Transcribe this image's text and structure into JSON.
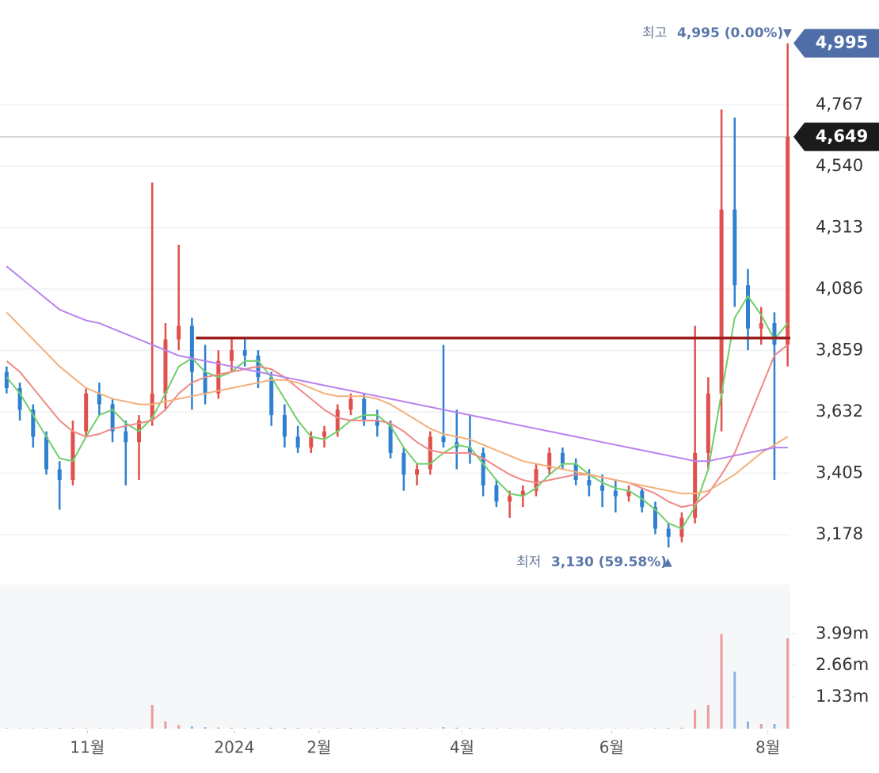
{
  "chart_data": {
    "type": "candlestick",
    "up_color": "#e0504c",
    "down_color": "#2f80d1",
    "xlim": [
      -0.5,
      59.2
    ],
    "xticks": [
      {
        "value": 6.1,
        "label": "11월"
      },
      {
        "value": 17.2,
        "label": "2024"
      },
      {
        "value": 23.6,
        "label": "2월"
      },
      {
        "value": 34.4,
        "label": "4월"
      },
      {
        "value": 45.7,
        "label": "6월"
      },
      {
        "value": 57.5,
        "label": "8월"
      }
    ],
    "ylim": [
      3017,
      5155
    ],
    "yticks": [
      {
        "value": 3178,
        "label": "3,178"
      },
      {
        "value": 3405,
        "label": "3,405"
      },
      {
        "value": 3632,
        "label": "3,632"
      },
      {
        "value": 3859,
        "label": "3,859"
      },
      {
        "value": 4086,
        "label": "4,086"
      },
      {
        "value": 4313,
        "label": "4,313"
      },
      {
        "value": 4540,
        "label": "4,540"
      },
      {
        "value": 4767,
        "label": "4,767"
      }
    ],
    "grid": true,
    "ohlc": [
      [
        3780,
        3800,
        3700,
        3720
      ],
      [
        3720,
        3740,
        3600,
        3640
      ],
      [
        3640,
        3660,
        3500,
        3540
      ],
      [
        3540,
        3560,
        3400,
        3420
      ],
      [
        3420,
        3450,
        3270,
        3380
      ],
      [
        3380,
        3600,
        3360,
        3560
      ],
      [
        3560,
        3720,
        3540,
        3700
      ],
      [
        3700,
        3740,
        3620,
        3660
      ],
      [
        3660,
        3680,
        3520,
        3560
      ],
      [
        3560,
        3600,
        3360,
        3520
      ],
      [
        3520,
        3620,
        3380,
        3600
      ],
      [
        3600,
        4480,
        3580,
        3700
      ],
      [
        3700,
        3960,
        3640,
        3900
      ],
      [
        3900,
        4250,
        3860,
        3950
      ],
      [
        3950,
        3980,
        3640,
        3780
      ],
      [
        3780,
        3880,
        3660,
        3700
      ],
      [
        3700,
        3860,
        3680,
        3820
      ],
      [
        3820,
        3900,
        3780,
        3860
      ],
      [
        3860,
        3900,
        3800,
        3840
      ],
      [
        3840,
        3860,
        3720,
        3760
      ],
      [
        3760,
        3780,
        3580,
        3620
      ],
      [
        3620,
        3660,
        3500,
        3540
      ],
      [
        3540,
        3580,
        3480,
        3500
      ],
      [
        3500,
        3560,
        3480,
        3540
      ],
      [
        3540,
        3580,
        3500,
        3560
      ],
      [
        3560,
        3660,
        3540,
        3640
      ],
      [
        3640,
        3700,
        3620,
        3680
      ],
      [
        3680,
        3700,
        3580,
        3600
      ],
      [
        3600,
        3640,
        3540,
        3580
      ],
      [
        3580,
        3600,
        3460,
        3480
      ],
      [
        3480,
        3500,
        3340,
        3400
      ],
      [
        3400,
        3440,
        3360,
        3420
      ],
      [
        3420,
        3560,
        3400,
        3540
      ],
      [
        3540,
        3880,
        3500,
        3520
      ],
      [
        3520,
        3640,
        3420,
        3500
      ],
      [
        3500,
        3620,
        3440,
        3480
      ],
      [
        3480,
        3500,
        3320,
        3360
      ],
      [
        3360,
        3380,
        3280,
        3300
      ],
      [
        3300,
        3340,
        3240,
        3320
      ],
      [
        3320,
        3360,
        3280,
        3340
      ],
      [
        3340,
        3440,
        3320,
        3420
      ],
      [
        3420,
        3500,
        3400,
        3480
      ],
      [
        3480,
        3500,
        3420,
        3440
      ],
      [
        3440,
        3460,
        3360,
        3380
      ],
      [
        3380,
        3420,
        3320,
        3360
      ],
      [
        3360,
        3400,
        3280,
        3340
      ],
      [
        3340,
        3380,
        3260,
        3320
      ],
      [
        3320,
        3360,
        3300,
        3340
      ],
      [
        3340,
        3350,
        3260,
        3280
      ],
      [
        3280,
        3300,
        3180,
        3200
      ],
      [
        3200,
        3220,
        3130,
        3170
      ],
      [
        3170,
        3260,
        3150,
        3240
      ],
      [
        3240,
        3950,
        3220,
        3480
      ],
      [
        3480,
        3760,
        3420,
        3700
      ],
      [
        3700,
        4750,
        3560,
        4380
      ],
      [
        4380,
        4720,
        4020,
        4100
      ],
      [
        4100,
        4160,
        3860,
        3940
      ],
      [
        3940,
        4020,
        3880,
        3960
      ],
      [
        3960,
        4000,
        3380,
        3880
      ],
      [
        3880,
        4995,
        3800,
        4649
      ]
    ],
    "moving_averages": [
      {
        "color": "#6fcf6a",
        "values": [
          3760,
          3700,
          3620,
          3540,
          3460,
          3450,
          3540,
          3620,
          3640,
          3590,
          3560,
          3610,
          3700,
          3800,
          3830,
          3780,
          3760,
          3780,
          3820,
          3820,
          3760,
          3680,
          3600,
          3540,
          3530,
          3560,
          3600,
          3620,
          3620,
          3580,
          3500,
          3440,
          3440,
          3480,
          3510,
          3500,
          3440,
          3380,
          3330,
          3320,
          3350,
          3400,
          3440,
          3440,
          3400,
          3370,
          3350,
          3340,
          3310,
          3270,
          3220,
          3200,
          3280,
          3420,
          3700,
          3980,
          4060,
          3990,
          3900,
          3960
        ]
      },
      {
        "color": "#ee8a86",
        "values": [
          3820,
          3780,
          3720,
          3660,
          3600,
          3560,
          3540,
          3550,
          3570,
          3580,
          3590,
          3600,
          3640,
          3700,
          3740,
          3760,
          3770,
          3780,
          3790,
          3800,
          3790,
          3760,
          3720,
          3680,
          3640,
          3610,
          3600,
          3600,
          3600,
          3590,
          3560,
          3520,
          3490,
          3480,
          3480,
          3480,
          3460,
          3430,
          3400,
          3380,
          3370,
          3380,
          3390,
          3400,
          3400,
          3390,
          3380,
          3370,
          3350,
          3330,
          3300,
          3280,
          3290,
          3330,
          3400,
          3480,
          3600,
          3720,
          3840,
          3880
        ]
      },
      {
        "color": "#f3b07c",
        "values": [
          4000,
          3950,
          3900,
          3850,
          3800,
          3760,
          3720,
          3700,
          3680,
          3670,
          3660,
          3660,
          3670,
          3680,
          3690,
          3700,
          3710,
          3720,
          3730,
          3740,
          3750,
          3750,
          3740,
          3720,
          3700,
          3690,
          3690,
          3690,
          3680,
          3660,
          3630,
          3600,
          3570,
          3550,
          3540,
          3530,
          3510,
          3490,
          3470,
          3450,
          3440,
          3430,
          3420,
          3410,
          3400,
          3390,
          3380,
          3370,
          3360,
          3350,
          3340,
          3330,
          3330,
          3340,
          3370,
          3400,
          3440,
          3480,
          3510,
          3540
        ]
      },
      {
        "color": "#b983ee",
        "values": [
          4170,
          4130,
          4090,
          4050,
          4010,
          3990,
          3970,
          3960,
          3940,
          3920,
          3900,
          3880,
          3860,
          3840,
          3830,
          3820,
          3810,
          3800,
          3790,
          3780,
          3770,
          3760,
          3750,
          3740,
          3730,
          3720,
          3710,
          3700,
          3690,
          3680,
          3670,
          3660,
          3650,
          3640,
          3630,
          3620,
          3610,
          3600,
          3590,
          3580,
          3570,
          3560,
          3550,
          3540,
          3530,
          3520,
          3510,
          3500,
          3490,
          3480,
          3470,
          3460,
          3450,
          3450,
          3460,
          3470,
          3480,
          3490,
          3500,
          3500
        ]
      }
    ],
    "hline": {
      "value": 3905,
      "color": "#9b1c1c"
    },
    "current": {
      "value": 4649,
      "label": "4,649"
    },
    "high": {
      "prefix": "최고",
      "text": "4,995 (0.00%)",
      "arrow": "▼",
      "value": 4995,
      "tag_label": "4,995"
    },
    "low": {
      "prefix": "최저",
      "text": "3,130 (59.58%)",
      "arrow": "▲"
    },
    "volume": {
      "ylim": [
        0,
        6000000
      ],
      "yticks": [
        {
          "value": 1330000,
          "label": "1.33m"
        },
        {
          "value": 2660000,
          "label": "2.66m"
        },
        {
          "value": 3990000,
          "label": "3.99m"
        }
      ],
      "values": [
        20000,
        15000,
        18000,
        22000,
        30000,
        25000,
        20000,
        18000,
        15000,
        12000,
        15000,
        1000000,
        300000,
        150000,
        100000,
        60000,
        50000,
        40000,
        30000,
        30000,
        40000,
        35000,
        30000,
        20000,
        20000,
        25000,
        30000,
        20000,
        20000,
        20000,
        25000,
        20000,
        20000,
        60000,
        40000,
        30000,
        25000,
        20000,
        20000,
        15000,
        15000,
        20000,
        15000,
        15000,
        15000,
        15000,
        15000,
        15000,
        15000,
        20000,
        30000,
        40000,
        800000,
        1000000,
        3990000,
        2400000,
        300000,
        200000,
        200000,
        3800000
      ]
    }
  }
}
